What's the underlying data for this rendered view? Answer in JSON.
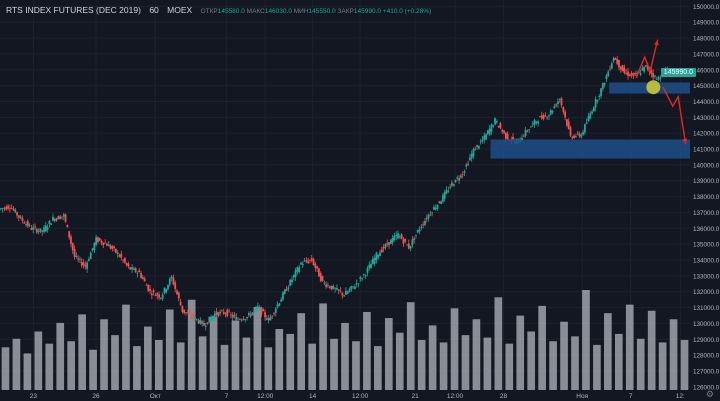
{
  "header": {
    "symbol": "RTS INDEX FUTURES (DEC 2019)",
    "timeframe": "60",
    "exchange": "MOEX",
    "open_label": "ОТКР",
    "open": "145580.0",
    "high_label": "МАКС",
    "high": "146030.0",
    "low_label": "МИН",
    "low": "145550.0",
    "close_label": "ЗАКР",
    "close": "145990.0",
    "change": "+410.0 (+0.28%)"
  },
  "last_price": "145990.0",
  "settings_icon": "gear-icon",
  "colors": {
    "background": "#131722",
    "up": "#26a69a",
    "down": "#ef5350",
    "volume": "#b2b5be",
    "zone": "#1f4f8a",
    "arrow": "#e32626",
    "marker": "#c8c83c"
  },
  "chart_data": {
    "type": "candlestick",
    "yticks": [
      "150000.0",
      "149000.0",
      "148000.0",
      "147000.0",
      "146000.0",
      "145000.0",
      "144000.0",
      "143000.0",
      "142000.0",
      "141000.0",
      "140000.0",
      "139000.0",
      "138000.0",
      "137000.0",
      "136000.0",
      "135000.0",
      "134000.0",
      "133000.0",
      "132000.0",
      "131000.0",
      "130000.0",
      "129000.0",
      "128000.0",
      "127000.0",
      "126000.0"
    ],
    "ylim": [
      125800,
      150400
    ],
    "xticks": [
      {
        "label": "23",
        "x": 3.1
      },
      {
        "label": "26",
        "x": 8.9
      },
      {
        "label": "Окт",
        "x": 14.4
      },
      {
        "label": "7",
        "x": 21.0
      },
      {
        "label": "12:00",
        "x": 24.6
      },
      {
        "label": "14",
        "x": 29.0
      },
      {
        "label": "12:00",
        "x": 33.4
      },
      {
        "label": "21",
        "x": 38.5
      },
      {
        "label": "12:00",
        "x": 42.2
      },
      {
        "label": "28",
        "x": 46.7
      },
      {
        "label": "Ноя",
        "x": 54.0
      },
      {
        "label": "7",
        "x": 58.5
      },
      {
        "label": "12:",
        "x": 63.1
      }
    ],
    "xlim": [
      0,
      64
    ],
    "price_path": [
      [
        0,
        137200
      ],
      [
        1,
        137400
      ],
      [
        2,
        136600
      ],
      [
        3,
        136000
      ],
      [
        4,
        135800
      ],
      [
        5,
        136600
      ],
      [
        6,
        136800
      ],
      [
        7,
        134200
      ],
      [
        8,
        133600
      ],
      [
        9,
        135300
      ],
      [
        10,
        135000
      ],
      [
        11,
        134400
      ],
      [
        12,
        133500
      ],
      [
        13,
        133200
      ],
      [
        14,
        132000
      ],
      [
        15,
        131700
      ],
      [
        16,
        132900
      ],
      [
        17,
        130800
      ],
      [
        18,
        130400
      ],
      [
        19,
        129900
      ],
      [
        20,
        130600
      ],
      [
        21,
        130700
      ],
      [
        22,
        130300
      ],
      [
        23,
        130400
      ],
      [
        24,
        131000
      ],
      [
        25,
        130200
      ],
      [
        26,
        131400
      ],
      [
        27,
        132600
      ],
      [
        28,
        133800
      ],
      [
        29,
        134000
      ],
      [
        30,
        132600
      ],
      [
        31,
        132200
      ],
      [
        32,
        131800
      ],
      [
        33,
        132400
      ],
      [
        34,
        133200
      ],
      [
        35,
        134300
      ],
      [
        36,
        135000
      ],
      [
        37,
        135600
      ],
      [
        38,
        134800
      ],
      [
        39,
        136000
      ],
      [
        40,
        137000
      ],
      [
        41,
        137800
      ],
      [
        42,
        138800
      ],
      [
        43,
        139500
      ],
      [
        44,
        140900
      ],
      [
        45,
        141700
      ],
      [
        46,
        142800
      ],
      [
        47,
        141800
      ],
      [
        48,
        141400
      ],
      [
        49,
        142200
      ],
      [
        50,
        142900
      ],
      [
        51,
        143200
      ],
      [
        52,
        144200
      ],
      [
        53,
        141800
      ],
      [
        54,
        141900
      ],
      [
        55,
        143500
      ],
      [
        56,
        145000
      ],
      [
        57,
        146800
      ],
      [
        58,
        145800
      ],
      [
        59,
        145600
      ],
      [
        60,
        146200
      ],
      [
        61,
        145400
      ],
      [
        62,
        146000
      ]
    ],
    "volume": [
      35,
      42,
      30,
      48,
      38,
      55,
      40,
      62,
      33,
      58,
      45,
      70,
      36,
      52,
      41,
      66,
      39,
      74,
      44,
      60,
      37,
      57,
      43,
      68,
      35,
      50,
      46,
      63,
      38,
      71,
      42,
      55,
      40,
      64,
      36,
      59,
      47,
      72,
      41,
      53,
      39,
      67,
      45,
      58,
      43,
      76,
      38,
      61,
      48,
      69,
      40,
      56,
      44,
      82,
      37,
      63,
      46,
      70,
      42,
      65,
      39,
      58,
      41
    ],
    "volume_max_label": ""
  },
  "annotations": {
    "zones": [
      {
        "from_x": 45.5,
        "to_x": 64,
        "top": 141600,
        "bottom": 140400
      },
      {
        "from_x": 56.5,
        "to_x": 64,
        "top": 145200,
        "bottom": 144500
      }
    ],
    "marker": {
      "x": 60.6,
      "y": 144900
    }
  }
}
